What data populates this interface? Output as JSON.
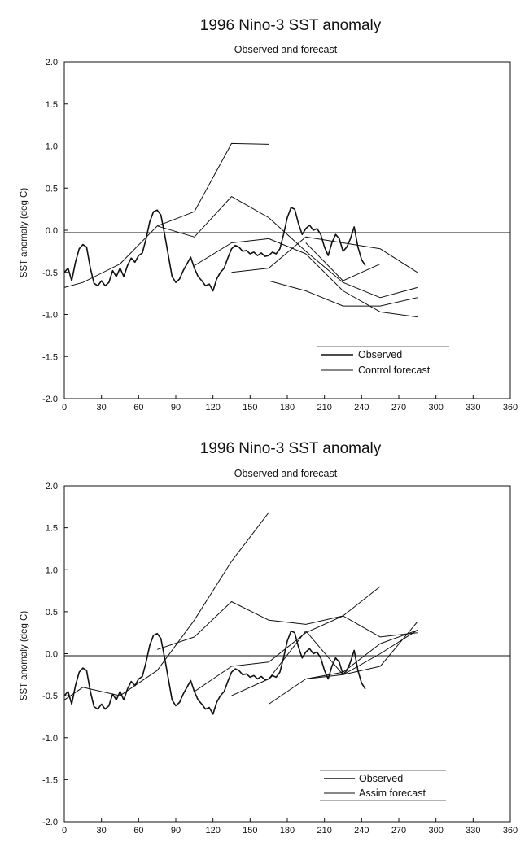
{
  "chart_data": [
    {
      "type": "line",
      "title": "1996 Nino-3 SST anomaly",
      "subtitle": "Observed and forecast",
      "xlabel": "",
      "ylabel": "SST anomaly (deg C)",
      "xlim": [
        0,
        360
      ],
      "ylim": [
        -2.0,
        2.0
      ],
      "xticks": [
        "0",
        "30",
        "60",
        "90",
        "120",
        "150",
        "180",
        "210",
        "240",
        "270",
        "300",
        "330",
        "360"
      ],
      "yticks": [
        "2.0",
        "1.5",
        "1.0",
        "0.5",
        "0.0",
        "-0.5",
        "-1.0",
        "-1.5",
        "-2.0"
      ],
      "legend": {
        "position": "bottom-right",
        "entries": [
          "Observed",
          "Control forecast"
        ]
      },
      "series": [
        {
          "name": "Observed",
          "role": "observed",
          "x": [
            0,
            3,
            6,
            9,
            12,
            15,
            18,
            21,
            24,
            27,
            30,
            33,
            36,
            39,
            42,
            45,
            48,
            51,
            54,
            57,
            60,
            63,
            66,
            69,
            72,
            75,
            78,
            81,
            84,
            87,
            90,
            93,
            96,
            99,
            102,
            105,
            108,
            111,
            114,
            117,
            120,
            123,
            126,
            129,
            132,
            135,
            138,
            141,
            144,
            147,
            150,
            153,
            156,
            159,
            162,
            165,
            168,
            171,
            174,
            177,
            180,
            183,
            186,
            189,
            192,
            195,
            198,
            201,
            204,
            207,
            210,
            213,
            216,
            219,
            222,
            225,
            228,
            231,
            234,
            237,
            240,
            243
          ],
          "y": [
            -0.5,
            -0.45,
            -0.6,
            -0.38,
            -0.22,
            -0.17,
            -0.2,
            -0.45,
            -0.63,
            -0.66,
            -0.6,
            -0.66,
            -0.62,
            -0.48,
            -0.55,
            -0.45,
            -0.55,
            -0.42,
            -0.33,
            -0.38,
            -0.3,
            -0.27,
            -0.1,
            0.1,
            0.22,
            0.24,
            0.18,
            -0.05,
            -0.3,
            -0.55,
            -0.62,
            -0.58,
            -0.48,
            -0.4,
            -0.32,
            -0.45,
            -0.55,
            -0.6,
            -0.66,
            -0.64,
            -0.72,
            -0.58,
            -0.5,
            -0.45,
            -0.33,
            -0.22,
            -0.18,
            -0.2,
            -0.25,
            -0.24,
            -0.28,
            -0.26,
            -0.3,
            -0.27,
            -0.31,
            -0.3,
            -0.26,
            -0.28,
            -0.22,
            -0.05,
            0.15,
            0.27,
            0.25,
            0.08,
            -0.05,
            0.02,
            0.06,
            0.0,
            0.02,
            -0.05,
            -0.2,
            -0.3,
            -0.15,
            -0.05,
            -0.1,
            -0.25,
            -0.2,
            -0.1,
            0.04,
            -0.2,
            -0.35,
            -0.42
          ]
        },
        {
          "name": "Control forecast",
          "role": "forecast",
          "x": [
            0,
            15,
            45,
            75,
            105,
            135,
            165
          ],
          "y": [
            -0.68,
            -0.62,
            -0.4,
            0.05,
            0.22,
            1.03,
            1.02
          ]
        },
        {
          "name": "Control forecast",
          "role": "forecast",
          "x": [
            75,
            105,
            135,
            165,
            195,
            225,
            255,
            285
          ],
          "y": [
            0.05,
            -0.08,
            0.4,
            0.15,
            -0.25,
            -0.62,
            -0.8,
            -0.68
          ]
        },
        {
          "name": "Control forecast",
          "role": "forecast",
          "x": [
            105,
            135,
            165,
            195,
            225,
            255,
            285
          ],
          "y": [
            -0.42,
            -0.15,
            -0.1,
            -0.28,
            -0.72,
            -0.97,
            -1.03
          ]
        },
        {
          "name": "Control forecast",
          "role": "forecast",
          "x": [
            135,
            165,
            195,
            225,
            255,
            285
          ],
          "y": [
            -0.5,
            -0.45,
            -0.08,
            -0.15,
            -0.22,
            -0.5
          ]
        },
        {
          "name": "Control forecast",
          "role": "forecast",
          "x": [
            165,
            195,
            225,
            255,
            285
          ],
          "y": [
            -0.6,
            -0.72,
            -0.9,
            -0.9,
            -0.8
          ]
        },
        {
          "name": "Control forecast",
          "role": "forecast",
          "x": [
            195,
            225,
            255
          ],
          "y": [
            -0.15,
            -0.6,
            -0.4
          ]
        }
      ]
    },
    {
      "type": "line",
      "title": "1996 Nino-3 SST anomaly",
      "subtitle": "Observed and forecast",
      "xlabel": "",
      "ylabel": "SST anomaly (deg C)",
      "xlim": [
        0,
        360
      ],
      "ylim": [
        -2.0,
        2.0
      ],
      "xticks": [
        "0",
        "30",
        "60",
        "90",
        "120",
        "150",
        "180",
        "210",
        "240",
        "270",
        "300",
        "330",
        "360"
      ],
      "yticks": [
        "2.0",
        "1.5",
        "1.0",
        "0.5",
        "0.0",
        "-0.5",
        "-1.0",
        "-1.5",
        "-2.0"
      ],
      "legend": {
        "position": "bottom-right",
        "entries": [
          "Observed",
          "Assim forecast"
        ]
      },
      "series": [
        {
          "name": "Observed",
          "role": "observed",
          "x": [
            0,
            3,
            6,
            9,
            12,
            15,
            18,
            21,
            24,
            27,
            30,
            33,
            36,
            39,
            42,
            45,
            48,
            51,
            54,
            57,
            60,
            63,
            66,
            69,
            72,
            75,
            78,
            81,
            84,
            87,
            90,
            93,
            96,
            99,
            102,
            105,
            108,
            111,
            114,
            117,
            120,
            123,
            126,
            129,
            132,
            135,
            138,
            141,
            144,
            147,
            150,
            153,
            156,
            159,
            162,
            165,
            168,
            171,
            174,
            177,
            180,
            183,
            186,
            189,
            192,
            195,
            198,
            201,
            204,
            207,
            210,
            213,
            216,
            219,
            222,
            225,
            228,
            231,
            234,
            237,
            240,
            243
          ],
          "y": [
            -0.5,
            -0.45,
            -0.6,
            -0.38,
            -0.22,
            -0.17,
            -0.2,
            -0.45,
            -0.63,
            -0.66,
            -0.6,
            -0.66,
            -0.62,
            -0.48,
            -0.55,
            -0.45,
            -0.55,
            -0.42,
            -0.33,
            -0.38,
            -0.3,
            -0.27,
            -0.1,
            0.1,
            0.22,
            0.24,
            0.18,
            -0.05,
            -0.3,
            -0.55,
            -0.62,
            -0.58,
            -0.48,
            -0.4,
            -0.32,
            -0.45,
            -0.55,
            -0.6,
            -0.66,
            -0.64,
            -0.72,
            -0.58,
            -0.5,
            -0.45,
            -0.33,
            -0.22,
            -0.18,
            -0.2,
            -0.25,
            -0.24,
            -0.28,
            -0.26,
            -0.3,
            -0.27,
            -0.31,
            -0.3,
            -0.26,
            -0.28,
            -0.22,
            -0.05,
            0.15,
            0.27,
            0.25,
            0.08,
            -0.05,
            0.02,
            0.06,
            0.0,
            0.02,
            -0.05,
            -0.2,
            -0.3,
            -0.15,
            -0.05,
            -0.1,
            -0.25,
            -0.2,
            -0.1,
            0.04,
            -0.2,
            -0.35,
            -0.42
          ]
        },
        {
          "name": "Assim forecast",
          "role": "forecast",
          "x": [
            0,
            15,
            45,
            75,
            105,
            135,
            165
          ],
          "y": [
            -0.55,
            -0.4,
            -0.5,
            -0.2,
            0.4,
            1.1,
            1.68
          ]
        },
        {
          "name": "Assim forecast",
          "role": "forecast",
          "x": [
            75,
            105,
            135,
            165,
            195,
            225,
            255,
            285
          ],
          "y": [
            0.05,
            0.2,
            0.62,
            0.4,
            0.35,
            0.45,
            0.2,
            0.25
          ]
        },
        {
          "name": "Assim forecast",
          "role": "forecast",
          "x": [
            105,
            135,
            165,
            195,
            225,
            255
          ],
          "y": [
            -0.45,
            -0.15,
            -0.1,
            0.25,
            0.45,
            0.8
          ]
        },
        {
          "name": "Assim forecast",
          "role": "forecast",
          "x": [
            135,
            165,
            195,
            225,
            255,
            285
          ],
          "y": [
            -0.5,
            -0.3,
            0.27,
            -0.25,
            -0.15,
            0.38
          ]
        },
        {
          "name": "Assim forecast",
          "role": "forecast",
          "x": [
            165,
            195,
            225,
            255,
            285
          ],
          "y": [
            -0.6,
            -0.3,
            -0.22,
            0.12,
            0.28
          ]
        },
        {
          "name": "Assim forecast",
          "role": "forecast",
          "x": [
            195,
            225,
            255,
            285
          ],
          "y": [
            -0.3,
            -0.25,
            0.0,
            0.28
          ]
        }
      ]
    }
  ]
}
